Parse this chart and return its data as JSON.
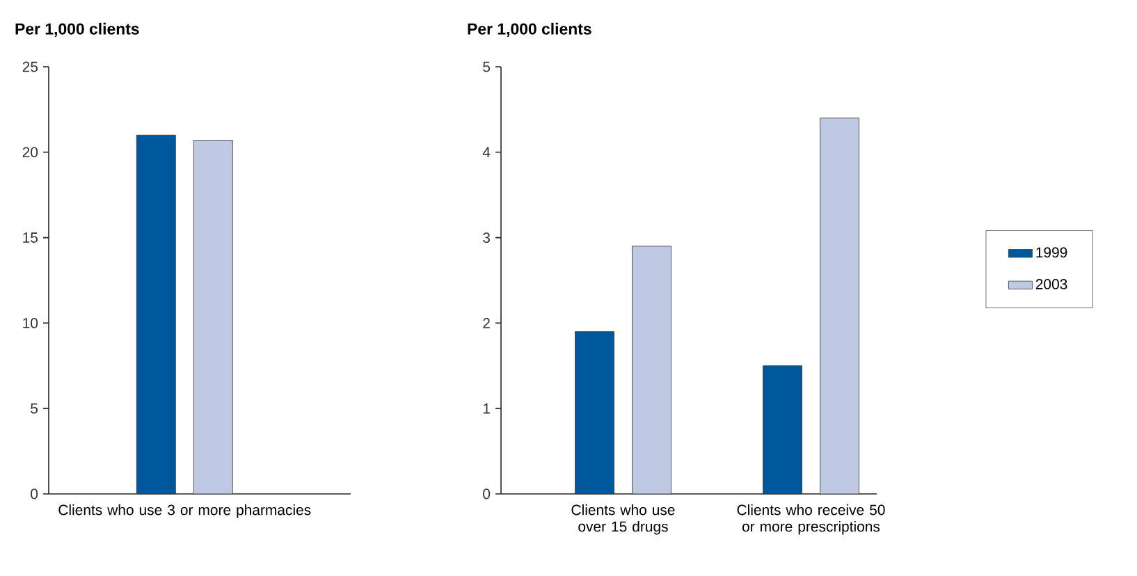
{
  "chart_data": [
    {
      "type": "bar",
      "title": "Per 1,000 clients",
      "categories": [
        "Clients who use 3 or more pharmacies"
      ],
      "ylim": [
        0,
        25
      ],
      "yticks": [
        0,
        5,
        10,
        15,
        20,
        25
      ],
      "series": [
        {
          "color": "#00589c",
          "values": [
            21.0
          ]
        },
        {
          "color": "#bfc9e3",
          "values": [
            20.7
          ]
        }
      ]
    },
    {
      "type": "bar",
      "title": "Per 1,000 clients",
      "categories": [
        "Clients who use over 15 drugs",
        "Clients who receive 50 or more prescriptions"
      ],
      "ylim": [
        0,
        5
      ],
      "yticks": [
        0,
        1,
        2,
        3,
        4,
        5
      ],
      "legend": "right",
      "series": [
        {
          "name": "1999",
          "color": "#00589c",
          "values": [
            1.9,
            1.5
          ]
        },
        {
          "name": "2003",
          "color": "#bfc9e3",
          "values": [
            2.9,
            4.4
          ]
        }
      ]
    }
  ]
}
